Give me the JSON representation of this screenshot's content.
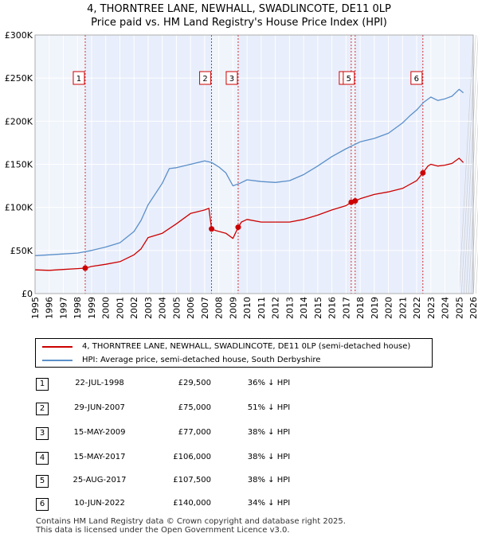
{
  "title_line1": "4, THORNTREE LANE, NEWHALL, SWADLINCOTE, DE11 0LP",
  "title_line2": "Price paid vs. HM Land Registry's House Price Index (HPI)",
  "colors": {
    "price": "#cc0000",
    "hpi": "#5b8fc9",
    "shade": "#e8eefb",
    "grid": "#ffffff"
  },
  "chart_data": {
    "type": "line",
    "xlabel": "",
    "ylabel": "",
    "xlim": [
      1995,
      2026
    ],
    "ylim": [
      0,
      300000
    ],
    "grid": true,
    "x_ticks": [
      "1995",
      "1996",
      "1997",
      "1998",
      "1999",
      "2000",
      "2001",
      "2002",
      "2003",
      "2004",
      "2005",
      "2006",
      "2007",
      "2008",
      "2009",
      "2010",
      "2011",
      "2012",
      "2013",
      "2014",
      "2015",
      "2016",
      "2017",
      "2018",
      "2019",
      "2020",
      "2021",
      "2022",
      "2023",
      "2024",
      "2025",
      "2026"
    ],
    "y_ticks": [
      {
        "value": 0,
        "label": "£0"
      },
      {
        "value": 50000,
        "label": "£50K"
      },
      {
        "value": 100000,
        "label": "£100K"
      },
      {
        "value": 150000,
        "label": "£150K"
      },
      {
        "value": 200000,
        "label": "£200K"
      },
      {
        "value": 250000,
        "label": "£250K"
      },
      {
        "value": 300000,
        "label": "£300K"
      }
    ],
    "shaded_ranges": [
      [
        1998.55,
        2007.49
      ],
      [
        2009.37,
        2017.37
      ],
      [
        2017.65,
        2022.44
      ],
      [
        2025.0,
        2026.0
      ]
    ],
    "series": [
      {
        "name": "4, THORNTREE LANE, NEWHALL, SWADLINCOTE, DE11 0LP (semi-detached house)",
        "color": "#cc0000",
        "x": [
          1995,
          1996,
          1997,
          1998,
          1998.55,
          1999,
          2000,
          2001,
          2002,
          2002.5,
          2003,
          2004,
          2005,
          2006,
          2006.5,
          2007,
          2007.3,
          2007.49,
          2007.8,
          2008.5,
          2009,
          2009.37,
          2009.6,
          2010,
          2011,
          2012,
          2013,
          2014,
          2015,
          2016,
          2017,
          2017.37,
          2017.65,
          2018,
          2019,
          2020,
          2021,
          2022,
          2022.44,
          2022.8,
          2023,
          2023.5,
          2024,
          2024.5,
          2025,
          2025.3
        ],
        "y": [
          27500,
          27000,
          28000,
          29000,
          29500,
          31500,
          34000,
          37000,
          45000,
          52000,
          65000,
          70000,
          81000,
          93000,
          95000,
          97000,
          99000,
          75000,
          73000,
          70000,
          64000,
          77000,
          83000,
          86000,
          83000,
          83000,
          83000,
          86000,
          91000,
          97000,
          102000,
          106000,
          107500,
          110000,
          115000,
          118000,
          122000,
          131000,
          140000,
          148000,
          150000,
          148000,
          149000,
          151000,
          157000,
          152000
        ]
      },
      {
        "name": "HPI: Average price, semi-detached house, South Derbyshire",
        "color": "#5b8fc9",
        "x": [
          1995,
          1996,
          1997,
          1998,
          1999,
          2000,
          2001,
          2002,
          2002.5,
          2003,
          2004,
          2004.5,
          2005,
          2006,
          2007,
          2007.5,
          2008,
          2008.5,
          2009,
          2009.5,
          2010,
          2011,
          2012,
          2013,
          2014,
          2015,
          2016,
          2017,
          2018,
          2019,
          2020,
          2021,
          2021.5,
          2022,
          2022.5,
          2023,
          2023.5,
          2024,
          2024.5,
          2025,
          2025.3
        ],
        "y": [
          44000,
          45000,
          46000,
          47000,
          50000,
          54000,
          59000,
          72000,
          85000,
          103000,
          128000,
          145000,
          146000,
          150000,
          154000,
          152000,
          147000,
          140000,
          125000,
          128000,
          132000,
          130000,
          129000,
          131000,
          138000,
          148000,
          159000,
          168000,
          176000,
          180000,
          186000,
          198000,
          206000,
          213000,
          222000,
          228000,
          224000,
          226000,
          229000,
          237000,
          233000
        ]
      }
    ],
    "sale_points": [
      {
        "x": 1998.55,
        "y": 29500,
        "label": "1"
      },
      {
        "x": 2007.49,
        "y": 75000,
        "label": "2"
      },
      {
        "x": 2009.37,
        "y": 77000,
        "label": "3"
      },
      {
        "x": 2017.37,
        "y": 106000,
        "label": "4"
      },
      {
        "x": 2017.65,
        "y": 107500,
        "label": "5"
      },
      {
        "x": 2022.44,
        "y": 140000,
        "label": "6"
      }
    ]
  },
  "legend": {
    "price_label": "4, THORNTREE LANE, NEWHALL, SWADLINCOTE, DE11 0LP (semi-detached house)",
    "hpi_label": "HPI: Average price, semi-detached house, South Derbyshire"
  },
  "transactions": [
    {
      "num": "1",
      "date": "22-JUL-1998",
      "price": "£29,500",
      "hpi": "36% ↓ HPI"
    },
    {
      "num": "2",
      "date": "29-JUN-2007",
      "price": "£75,000",
      "hpi": "51% ↓ HPI"
    },
    {
      "num": "3",
      "date": "15-MAY-2009",
      "price": "£77,000",
      "hpi": "38% ↓ HPI"
    },
    {
      "num": "4",
      "date": "15-MAY-2017",
      "price": "£106,000",
      "hpi": "38% ↓ HPI"
    },
    {
      "num": "5",
      "date": "25-AUG-2017",
      "price": "£107,500",
      "hpi": "38% ↓ HPI"
    },
    {
      "num": "6",
      "date": "10-JUN-2022",
      "price": "£140,000",
      "hpi": "34% ↓ HPI"
    }
  ],
  "footer_line1": "Contains HM Land Registry data © Crown copyright and database right 2025.",
  "footer_line2": "This data is licensed under the Open Government Licence v3.0."
}
